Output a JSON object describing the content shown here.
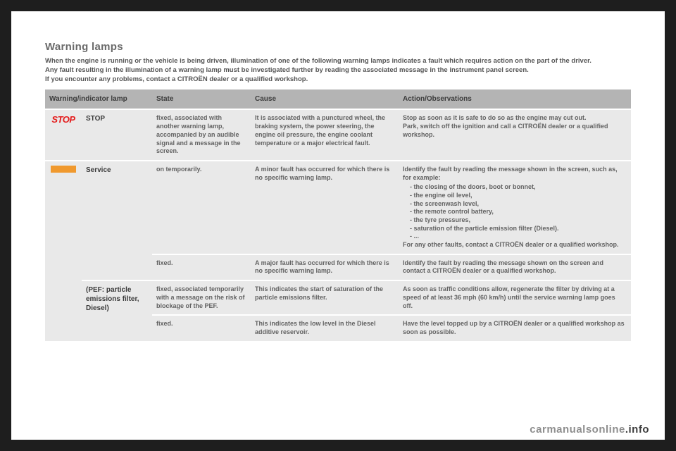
{
  "title": "Warning lamps",
  "intro": "When the engine is running or the vehicle is being driven, illumination of one of the following warning lamps indicates a fault which requires action on the part of the driver.\nAny fault resulting in the illumination of a warning lamp must be investigated further by reading the associated message in the instrument panel screen.\nIf you encounter any problems, contact a CITROËN dealer or a qualified workshop.",
  "headers": {
    "lamp": "Warning/indicator lamp",
    "state": "State",
    "cause": "Cause",
    "action": "Action/Observations"
  },
  "rows": {
    "stop": {
      "badge": "STOP",
      "name": "STOP",
      "state": "fixed, associated with another warning lamp, accompanied by an audible signal and a message in the screen.",
      "cause": "It is associated with a punctured wheel, the braking system, the power steering, the engine oil pressure, the engine coolant temperature or a major electrical fault.",
      "action": "Stop as soon as it is safe to do so as the engine may cut out.\nPark, switch off the ignition and call a CITROËN dealer or a qualified workshop."
    },
    "service1": {
      "name": "Service",
      "state": "on temporarily.",
      "cause": "A minor fault has occurred for which there is no specific warning lamp.",
      "action_lead": "Identify the fault by reading the message shown in the screen, such as, for example:",
      "bullets": [
        "the closing of the doors, boot or bonnet,",
        "the engine oil level,",
        "the screenwash level,",
        "the remote control battery,",
        "the tyre pressures,",
        "saturation of the particle emission filter (Diesel).",
        "..."
      ],
      "action_tail": "For any other faults, contact a CITROËN dealer or a qualified workshop."
    },
    "service2": {
      "state": "fixed.",
      "cause": "A major fault has occurred for which there is no specific warning lamp.",
      "action": "Identify the fault by reading the message shown on the screen and contact a CITROËN dealer or a qualified workshop."
    },
    "pef1": {
      "name": "(PEF: particle emissions filter, Diesel)",
      "state": "fixed, associated temporarily with a message on the risk of blockage of the PEF.",
      "cause": "This indicates the start of saturation of the particle emissions filter.",
      "action": "As soon as traffic conditions allow, regenerate the filter by driving at a speed of at least 36 mph (60 km/h) until the service warning lamp goes off."
    },
    "pef2": {
      "state": "fixed.",
      "cause": "This indicates the low level in the Diesel additive reservoir.",
      "action": "Have the level topped up by a CITROËN dealer or a qualified workshop as soon as possible."
    }
  },
  "watermark": {
    "a": "carmanualsonline",
    "b": ".info"
  }
}
